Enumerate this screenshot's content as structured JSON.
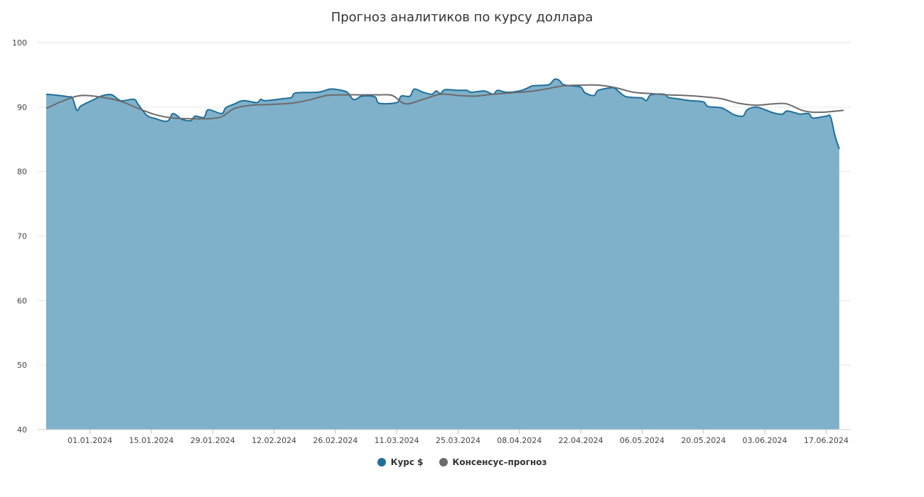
{
  "chart_data": {
    "type": "area",
    "title": "Прогноз аналитиков по курсу доллара",
    "xlabel": "",
    "ylabel": "",
    "ylim": [
      40,
      100
    ],
    "yticks": [
      40,
      50,
      60,
      70,
      80,
      90,
      100
    ],
    "xticks": [
      "01.01.2024",
      "15.01.2024",
      "29.01.2024",
      "12.02.2024",
      "26.02.2024",
      "11.03.2024",
      "25.03.2024",
      "08.04.2024",
      "22.04.2024",
      "06.05.2024",
      "20.05.2024",
      "03.06.2024",
      "17.06.2024"
    ],
    "x_start": "2023-12-22",
    "x_end": "2024-06-21",
    "grid": true,
    "legend_position": "bottom-center",
    "series": [
      {
        "name": "Курс $",
        "kind": "area",
        "color": "#1f6f99",
        "fill": "#7fb1ca",
        "points": [
          [
            "2023-12-22",
            92.0
          ],
          [
            "2023-12-25",
            91.8
          ],
          [
            "2023-12-27",
            91.6
          ],
          [
            "2023-12-28",
            91.4
          ],
          [
            "2023-12-29",
            89.5
          ],
          [
            "2023-12-30",
            90.2
          ],
          [
            "2024-01-02",
            91.2
          ],
          [
            "2024-01-04",
            91.8
          ],
          [
            "2024-01-06",
            91.9
          ],
          [
            "2024-01-08",
            91.0
          ],
          [
            "2024-01-11",
            91.2
          ],
          [
            "2024-01-12",
            90.4
          ],
          [
            "2024-01-14",
            88.7
          ],
          [
            "2024-01-16",
            88.2
          ],
          [
            "2024-01-18",
            87.8
          ],
          [
            "2024-01-19",
            88.0
          ],
          [
            "2024-01-20",
            89.0
          ],
          [
            "2024-01-22",
            88.1
          ],
          [
            "2024-01-24",
            87.9
          ],
          [
            "2024-01-25",
            88.6
          ],
          [
            "2024-01-27",
            88.4
          ],
          [
            "2024-01-28",
            89.6
          ],
          [
            "2024-01-31",
            89.0
          ],
          [
            "2024-02-01",
            89.9
          ],
          [
            "2024-02-03",
            90.5
          ],
          [
            "2024-02-05",
            91.0
          ],
          [
            "2024-02-08",
            90.7
          ],
          [
            "2024-02-09",
            91.2
          ],
          [
            "2024-02-10",
            91.0
          ],
          [
            "2024-02-14",
            91.3
          ],
          [
            "2024-02-16",
            91.5
          ],
          [
            "2024-02-17",
            92.2
          ],
          [
            "2024-02-22",
            92.3
          ],
          [
            "2024-02-25",
            92.8
          ],
          [
            "2024-02-28",
            92.5
          ],
          [
            "2024-02-29",
            92.1
          ],
          [
            "2024-03-01",
            91.2
          ],
          [
            "2024-03-02",
            91.3
          ],
          [
            "2024-03-03",
            91.7
          ],
          [
            "2024-03-06",
            91.6
          ],
          [
            "2024-03-07",
            90.6
          ],
          [
            "2024-03-11",
            90.7
          ],
          [
            "2024-03-12",
            91.7
          ],
          [
            "2024-03-14",
            91.7
          ],
          [
            "2024-03-15",
            92.8
          ],
          [
            "2024-03-17",
            92.3
          ],
          [
            "2024-03-19",
            92.0
          ],
          [
            "2024-03-20",
            92.5
          ],
          [
            "2024-03-21",
            92.1
          ],
          [
            "2024-03-22",
            92.7
          ],
          [
            "2024-03-25",
            92.6
          ],
          [
            "2024-03-27",
            92.6
          ],
          [
            "2024-03-28",
            92.3
          ],
          [
            "2024-03-31",
            92.5
          ],
          [
            "2024-04-02",
            92.0
          ],
          [
            "2024-04-03",
            92.6
          ],
          [
            "2024-04-05",
            92.3
          ],
          [
            "2024-04-08",
            92.5
          ],
          [
            "2024-04-10",
            93.0
          ],
          [
            "2024-04-11",
            93.3
          ],
          [
            "2024-04-14",
            93.4
          ],
          [
            "2024-04-15",
            93.6
          ],
          [
            "2024-04-16",
            94.3
          ],
          [
            "2024-04-17",
            94.2
          ],
          [
            "2024-04-18",
            93.5
          ],
          [
            "2024-04-20",
            93.3
          ],
          [
            "2024-04-22",
            93.1
          ],
          [
            "2024-04-23",
            92.2
          ],
          [
            "2024-04-25",
            91.8
          ],
          [
            "2024-04-26",
            92.6
          ],
          [
            "2024-04-29",
            93.0
          ],
          [
            "2024-04-30",
            92.8
          ],
          [
            "2024-05-02",
            91.7
          ],
          [
            "2024-05-04",
            91.5
          ],
          [
            "2024-05-06",
            91.4
          ],
          [
            "2024-05-07",
            91.0
          ],
          [
            "2024-05-08",
            91.9
          ],
          [
            "2024-05-11",
            92.0
          ],
          [
            "2024-05-12",
            91.5
          ],
          [
            "2024-05-14",
            91.3
          ],
          [
            "2024-05-17",
            91.0
          ],
          [
            "2024-05-20",
            90.8
          ],
          [
            "2024-05-21",
            90.1
          ],
          [
            "2024-05-24",
            89.9
          ],
          [
            "2024-05-26",
            89.2
          ],
          [
            "2024-05-27",
            88.8
          ],
          [
            "2024-05-29",
            88.6
          ],
          [
            "2024-05-30",
            89.6
          ],
          [
            "2024-06-01",
            90.0
          ],
          [
            "2024-06-03",
            89.6
          ],
          [
            "2024-06-05",
            89.1
          ],
          [
            "2024-06-07",
            88.9
          ],
          [
            "2024-06-08",
            89.4
          ],
          [
            "2024-06-10",
            89.1
          ],
          [
            "2024-06-11",
            88.9
          ],
          [
            "2024-06-13",
            89.0
          ],
          [
            "2024-06-14",
            88.3
          ],
          [
            "2024-06-17",
            88.6
          ],
          [
            "2024-06-18",
            88.5
          ],
          [
            "2024-06-19",
            85.6
          ],
          [
            "2024-06-20",
            83.5
          ]
        ]
      },
      {
        "name": "Консенсус–прогноз",
        "kind": "line",
        "color": "#6b6b6b",
        "points": [
          [
            "2023-12-22",
            89.8
          ],
          [
            "2023-12-26",
            91.0
          ],
          [
            "2023-12-30",
            91.8
          ],
          [
            "2024-01-04",
            91.5
          ],
          [
            "2024-01-08",
            90.9
          ],
          [
            "2024-01-12",
            89.8
          ],
          [
            "2024-01-16",
            88.8
          ],
          [
            "2024-01-20",
            88.3
          ],
          [
            "2024-01-24",
            88.2
          ],
          [
            "2024-01-28",
            88.2
          ],
          [
            "2024-01-31",
            88.5
          ],
          [
            "2024-02-03",
            89.8
          ],
          [
            "2024-02-07",
            90.3
          ],
          [
            "2024-02-11",
            90.4
          ],
          [
            "2024-02-16",
            90.6
          ],
          [
            "2024-02-20",
            91.1
          ],
          [
            "2024-02-24",
            91.8
          ],
          [
            "2024-02-28",
            91.9
          ],
          [
            "2024-03-03",
            91.9
          ],
          [
            "2024-03-07",
            91.9
          ],
          [
            "2024-03-10",
            91.8
          ],
          [
            "2024-03-13",
            90.5
          ],
          [
            "2024-03-17",
            91.2
          ],
          [
            "2024-03-21",
            92.0
          ],
          [
            "2024-03-25",
            91.8
          ],
          [
            "2024-03-29",
            91.7
          ],
          [
            "2024-04-02",
            92.0
          ],
          [
            "2024-04-06",
            92.2
          ],
          [
            "2024-04-10",
            92.4
          ],
          [
            "2024-04-14",
            92.8
          ],
          [
            "2024-04-18",
            93.3
          ],
          [
            "2024-04-22",
            93.4
          ],
          [
            "2024-04-26",
            93.4
          ],
          [
            "2024-04-30",
            93.0
          ],
          [
            "2024-05-04",
            92.3
          ],
          [
            "2024-05-08",
            92.1
          ],
          [
            "2024-05-12",
            91.9
          ],
          [
            "2024-05-16",
            91.8
          ],
          [
            "2024-05-20",
            91.6
          ],
          [
            "2024-05-24",
            91.3
          ],
          [
            "2024-05-28",
            90.6
          ],
          [
            "2024-06-01",
            90.3
          ],
          [
            "2024-06-05",
            90.5
          ],
          [
            "2024-06-08",
            90.5
          ],
          [
            "2024-06-12",
            89.4
          ],
          [
            "2024-06-16",
            89.2
          ],
          [
            "2024-06-21",
            89.5
          ]
        ]
      }
    ]
  },
  "colors": {
    "accent": "#1f6f99",
    "area_fill": "#7fb1ca",
    "consensus": "#6b6b6b",
    "grid": "#e6e6e6"
  }
}
